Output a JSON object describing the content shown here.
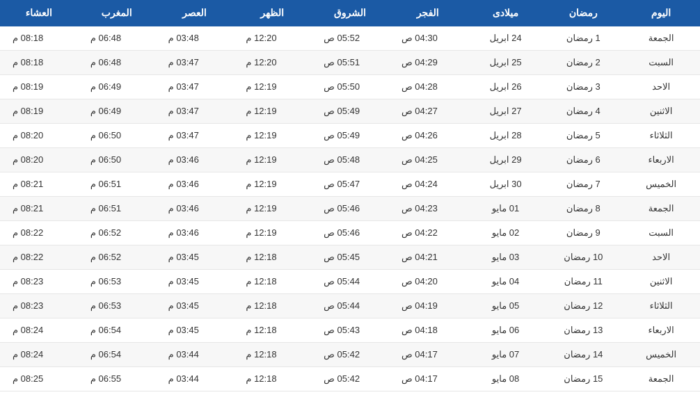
{
  "table": {
    "header_bg": "#1b5aa5",
    "header_color": "#ffffff",
    "row_alt_bg": "#f7f7f7",
    "border_color": "#e6e6e6",
    "columns": [
      {
        "key": "day",
        "label": "اليوم"
      },
      {
        "key": "ramadan",
        "label": "رمضان"
      },
      {
        "key": "miladi",
        "label": "ميلادى"
      },
      {
        "key": "fajr",
        "label": "الفجر"
      },
      {
        "key": "shuruq",
        "label": "الشروق"
      },
      {
        "key": "dhuhr",
        "label": "الظهر"
      },
      {
        "key": "asr",
        "label": "العصر"
      },
      {
        "key": "maghrib",
        "label": "المغرب"
      },
      {
        "key": "isha",
        "label": "العشاء"
      }
    ],
    "rows": [
      {
        "day": "الجمعة",
        "ramadan": "1 رمضان",
        "miladi": "24 ابريل",
        "fajr": "04:30 ص",
        "shuruq": "05:52 ص",
        "dhuhr": "12:20 م",
        "asr": "03:48 م",
        "maghrib": "06:48 م",
        "isha": "08:18 م"
      },
      {
        "day": "السبت",
        "ramadan": "2 رمضان",
        "miladi": "25 ابريل",
        "fajr": "04:29 ص",
        "shuruq": "05:51 ص",
        "dhuhr": "12:20 م",
        "asr": "03:47 م",
        "maghrib": "06:48 م",
        "isha": "08:18 م"
      },
      {
        "day": "الاحد",
        "ramadan": "3 رمضان",
        "miladi": "26 ابريل",
        "fajr": "04:28 ص",
        "shuruq": "05:50 ص",
        "dhuhr": "12:19 م",
        "asr": "03:47 م",
        "maghrib": "06:49 م",
        "isha": "08:19 م"
      },
      {
        "day": "الاثنين",
        "ramadan": "4 رمضان",
        "miladi": "27 ابريل",
        "fajr": "04:27 ص",
        "shuruq": "05:49 ص",
        "dhuhr": "12:19 م",
        "asr": "03:47 م",
        "maghrib": "06:49 م",
        "isha": "08:19 م"
      },
      {
        "day": "الثلاثاء",
        "ramadan": "5 رمضان",
        "miladi": "28 ابريل",
        "fajr": "04:26 ص",
        "shuruq": "05:49 ص",
        "dhuhr": "12:19 م",
        "asr": "03:47 م",
        "maghrib": "06:50 م",
        "isha": "08:20 م"
      },
      {
        "day": "الاربعاء",
        "ramadan": "6 رمضان",
        "miladi": "29 ابريل",
        "fajr": "04:25 ص",
        "shuruq": "05:48 ص",
        "dhuhr": "12:19 م",
        "asr": "03:46 م",
        "maghrib": "06:50 م",
        "isha": "08:20 م"
      },
      {
        "day": "الخميس",
        "ramadan": "7 رمضان",
        "miladi": "30 ابريل",
        "fajr": "04:24 ص",
        "shuruq": "05:47 ص",
        "dhuhr": "12:19 م",
        "asr": "03:46 م",
        "maghrib": "06:51 م",
        "isha": "08:21 م"
      },
      {
        "day": "الجمعة",
        "ramadan": "8 رمضان",
        "miladi": "01 مايو",
        "fajr": "04:23 ص",
        "shuruq": "05:46 ص",
        "dhuhr": "12:19 م",
        "asr": "03:46 م",
        "maghrib": "06:51 م",
        "isha": "08:21 م"
      },
      {
        "day": "السبت",
        "ramadan": "9 رمضان",
        "miladi": "02 مايو",
        "fajr": "04:22 ص",
        "shuruq": "05:46 ص",
        "dhuhr": "12:19 م",
        "asr": "03:46 م",
        "maghrib": "06:52 م",
        "isha": "08:22 م"
      },
      {
        "day": "الاحد",
        "ramadan": "10 رمضان",
        "miladi": "03 مايو",
        "fajr": "04:21 ص",
        "shuruq": "05:45 ص",
        "dhuhr": "12:18 م",
        "asr": "03:45 م",
        "maghrib": "06:52 م",
        "isha": "08:22 م"
      },
      {
        "day": "الاثنين",
        "ramadan": "11 رمضان",
        "miladi": "04 مايو",
        "fajr": "04:20 ص",
        "shuruq": "05:44 ص",
        "dhuhr": "12:18 م",
        "asr": "03:45 م",
        "maghrib": "06:53 م",
        "isha": "08:23 م"
      },
      {
        "day": "الثلاثاء",
        "ramadan": "12 رمضان",
        "miladi": "05 مايو",
        "fajr": "04:19 ص",
        "shuruq": "05:44 ص",
        "dhuhr": "12:18 م",
        "asr": "03:45 م",
        "maghrib": "06:53 م",
        "isha": "08:23 م"
      },
      {
        "day": "الاربعاء",
        "ramadan": "13 رمضان",
        "miladi": "06 مايو",
        "fajr": "04:18 ص",
        "shuruq": "05:43 ص",
        "dhuhr": "12:18 م",
        "asr": "03:45 م",
        "maghrib": "06:54 م",
        "isha": "08:24 م"
      },
      {
        "day": "الخميس",
        "ramadan": "14 رمضان",
        "miladi": "07 مايو",
        "fajr": "04:17 ص",
        "shuruq": "05:42 ص",
        "dhuhr": "12:18 م",
        "asr": "03:44 م",
        "maghrib": "06:54 م",
        "isha": "08:24 م"
      },
      {
        "day": "الجمعة",
        "ramadan": "15 رمضان",
        "miladi": "08 مايو",
        "fajr": "04:17 ص",
        "shuruq": "05:42 ص",
        "dhuhr": "12:18 م",
        "asr": "03:44 م",
        "maghrib": "06:55 م",
        "isha": "08:25 م"
      }
    ]
  }
}
